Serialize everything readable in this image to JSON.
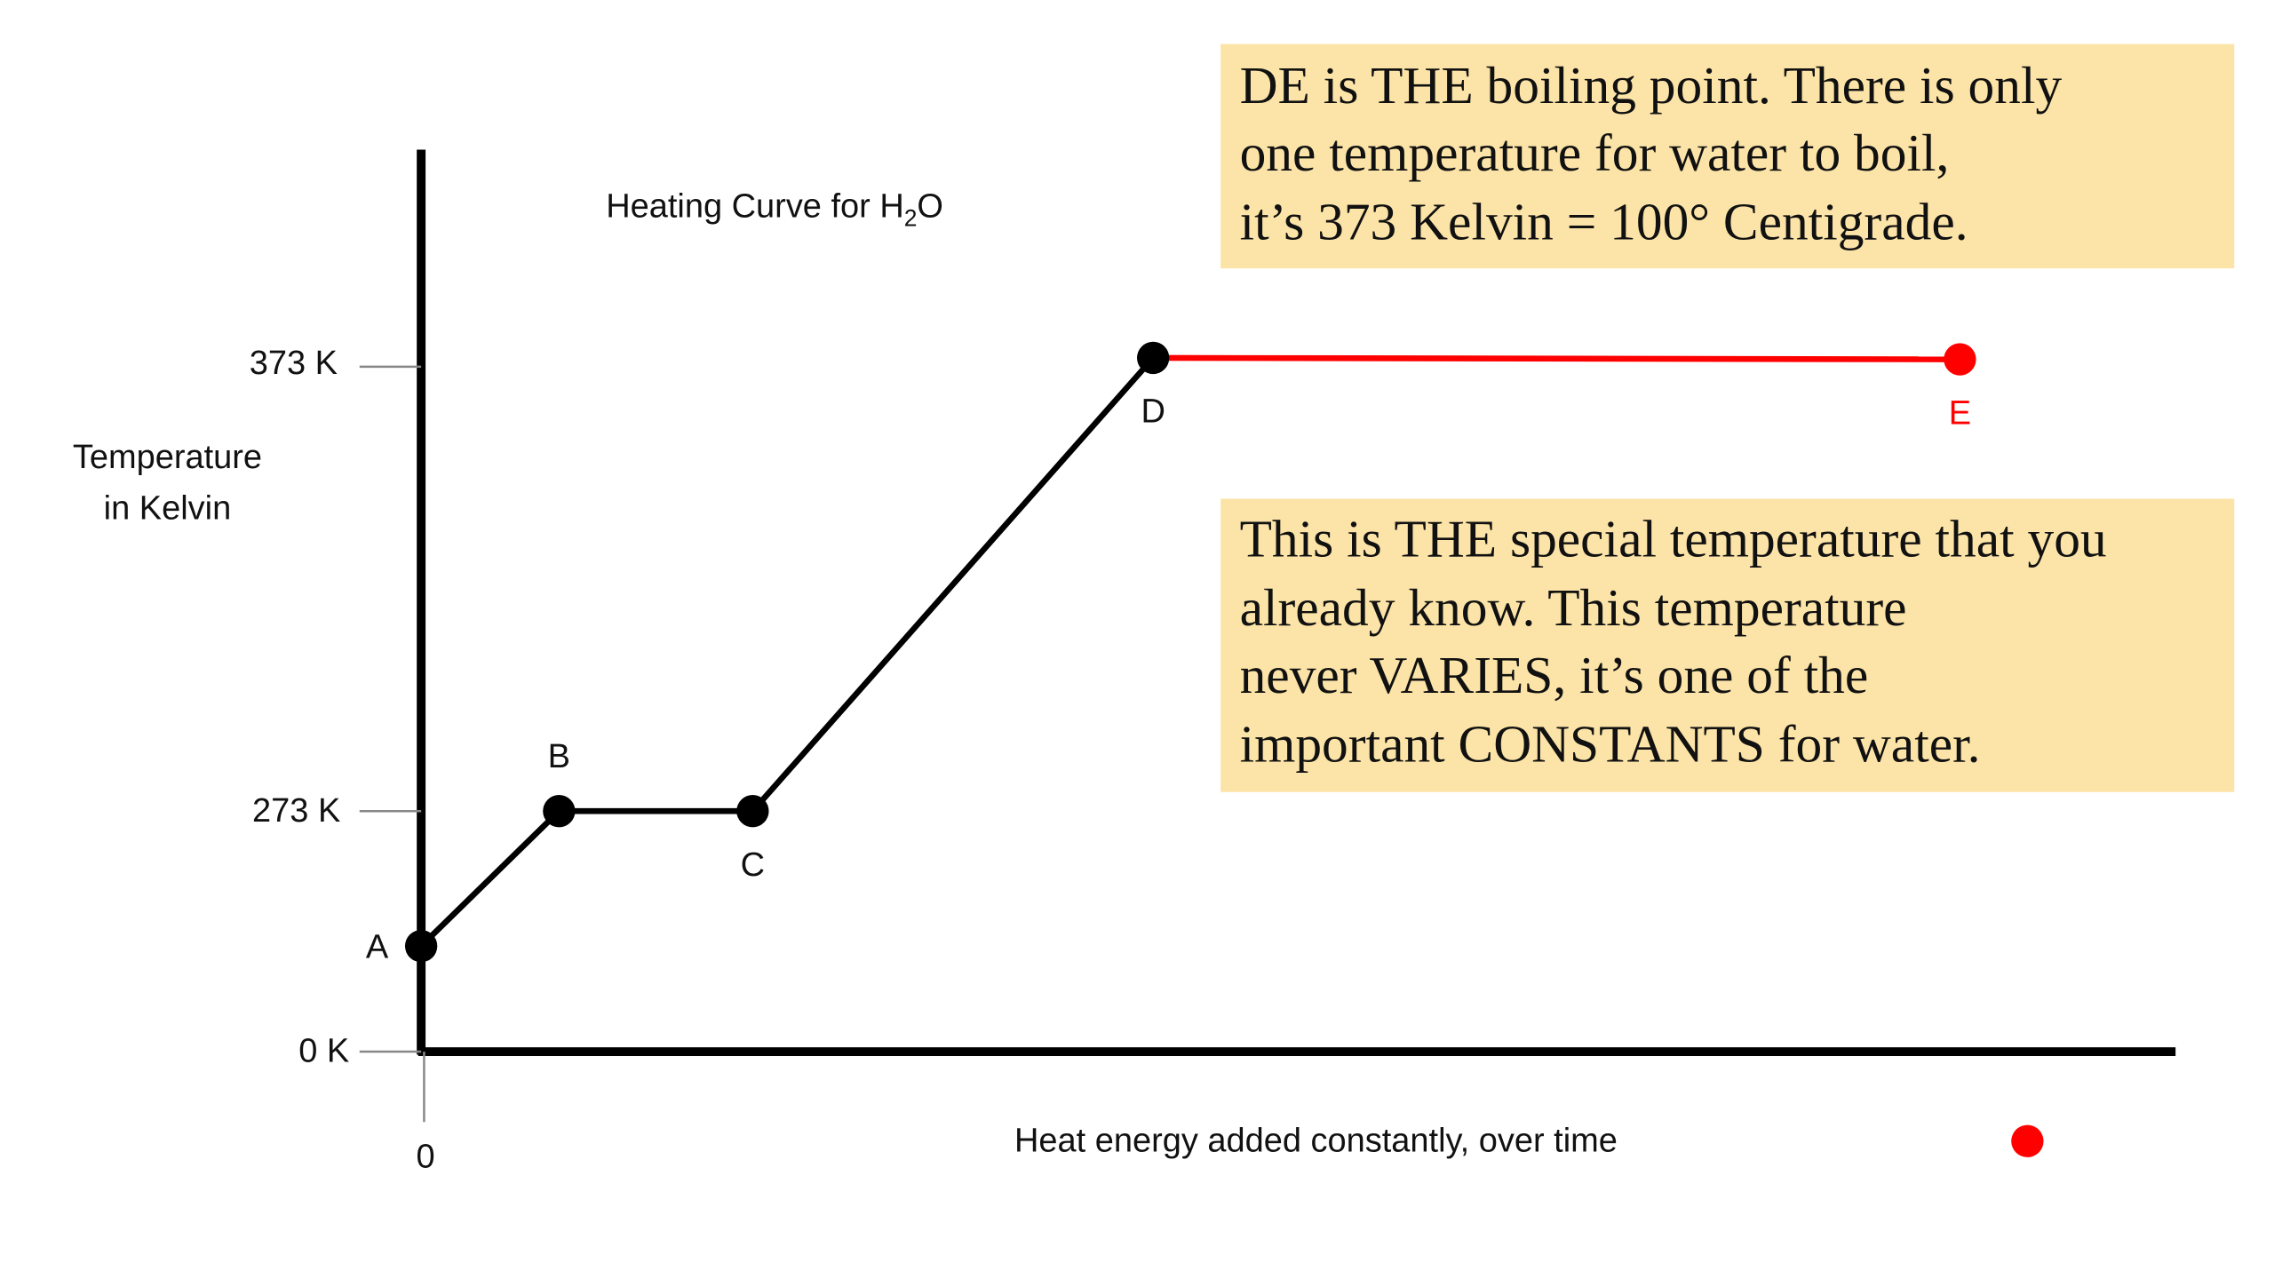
{
  "diagram": {
    "title": [
      "Heating Curve for H",
      "2",
      "O"
    ],
    "y_axis_label": [
      "Temperature",
      "in Kelvin"
    ],
    "x_axis_label": "Heat energy added constantly, over time",
    "y_ticks": [
      "373 K",
      "273 K",
      "0 K"
    ],
    "x_ticks": [
      "0"
    ],
    "points": [
      "A",
      "B",
      "C",
      "D",
      "E"
    ],
    "boxes": [
      [
        "DE is THE boiling point.  There is only",
        "one temperature for water to boil,",
        "it’s 373 Kelvin = 100° Centigrade."
      ],
      [
        "This is THE special temperature that you",
        "already know.  This temperature",
        "never VARIES, it’s one of the",
        "important CONSTANTS for water."
      ]
    ]
  }
}
